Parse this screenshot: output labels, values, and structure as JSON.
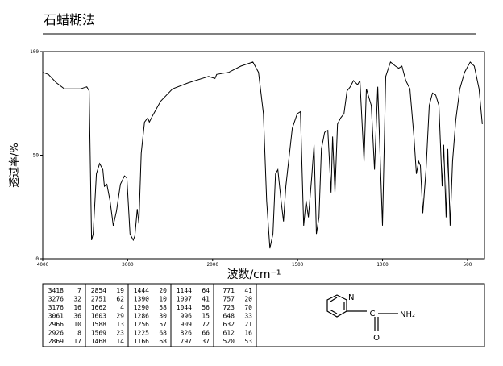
{
  "chart_data": {
    "type": "line",
    "title": "石蜡糊法",
    "x_label": "波数/cm⁻¹",
    "y_label": "透过率/%",
    "xlim": [
      4000,
      400
    ],
    "xticks": [
      4000,
      3000,
      2000,
      1500,
      1000,
      500
    ],
    "x_scale_break": 2000,
    "ylim": [
      0,
      100
    ],
    "yticks": [
      0,
      50,
      100
    ],
    "color": "#000000",
    "series": [
      {
        "x": [
          4000,
          3934,
          3840,
          3745,
          3557,
          3481,
          3453,
          3425,
          3406,
          3368,
          3330,
          3292,
          3274,
          3245,
          3208,
          3170,
          3132,
          3085,
          3038,
          3009,
          2972,
          2934,
          2915,
          2887,
          2868,
          2840,
          2802,
          2764,
          2745,
          2708,
          2613,
          2472,
          2283,
          2047,
          1986,
          1976,
          1905,
          1834,
          1763,
          1730,
          1701,
          1682,
          1663,
          1645,
          1630,
          1616,
          1597,
          1583,
          1569,
          1550,
          1531,
          1502,
          1483,
          1464,
          1450,
          1436,
          1417,
          1403,
          1389,
          1374,
          1360,
          1341,
          1322,
          1303,
          1294,
          1280,
          1265,
          1246,
          1227,
          1209,
          1190,
          1171,
          1147,
          1133,
          1109,
          1095,
          1066,
          1047,
          1028,
          1000,
          981,
          953,
          924,
          905,
          886,
          863,
          839,
          815,
          801,
          787,
          777,
          763,
          744,
          725,
          706,
          687,
          668,
          649,
          640,
          626,
          616,
          602,
          588,
          569,
          545,
          517,
          484,
          460,
          432,
          413
        ],
        "values": [
          90,
          89,
          85,
          82,
          82,
          83,
          81,
          9,
          12,
          41,
          46,
          43,
          35,
          36,
          28,
          16,
          23,
          36,
          40,
          39,
          12,
          9,
          11,
          24,
          17,
          51,
          66,
          68,
          66,
          69,
          76,
          82,
          85,
          88,
          87,
          89,
          90,
          93,
          95,
          90,
          70,
          28,
          5,
          12,
          41,
          43,
          28,
          18,
          35,
          49,
          63,
          70,
          71,
          16,
          28,
          20,
          39,
          55,
          12,
          20,
          53,
          61,
          62,
          32,
          59,
          32,
          65,
          68,
          70,
          81,
          83,
          86,
          84,
          86,
          47,
          82,
          74,
          43,
          83,
          16,
          88,
          95,
          93,
          92,
          93,
          86,
          82,
          59,
          41,
          47,
          45,
          22,
          43,
          74,
          80,
          79,
          74,
          35,
          55,
          20,
          53,
          16,
          47,
          67,
          82,
          90,
          95,
          93,
          82,
          65
        ]
      }
    ]
  },
  "peak_table": [
    [
      [
        3418,
        7
      ],
      [
        3276,
        32
      ],
      [
        3176,
        16
      ],
      [
        3061,
        36
      ],
      [
        2966,
        10
      ],
      [
        2926,
        8
      ],
      [
        2869,
        17
      ]
    ],
    [
      [
        2854,
        19
      ],
      [
        2751,
        62
      ],
      [
        1662,
        4
      ],
      [
        1603,
        29
      ],
      [
        1588,
        13
      ],
      [
        1569,
        23
      ],
      [
        1468,
        14
      ]
    ],
    [
      [
        1444,
        20
      ],
      [
        1390,
        10
      ],
      [
        1290,
        58
      ],
      [
        1286,
        30
      ],
      [
        1256,
        57
      ],
      [
        1225,
        68
      ],
      [
        1166,
        68
      ]
    ],
    [
      [
        1144,
        64
      ],
      [
        1097,
        41
      ],
      [
        1044,
        56
      ],
      [
        996,
        15
      ],
      [
        909,
        72
      ],
      [
        826,
        66
      ],
      [
        797,
        37
      ]
    ],
    [
      [
        771,
        41
      ],
      [
        757,
        20
      ],
      [
        723,
        70
      ],
      [
        648,
        33
      ],
      [
        632,
        21
      ],
      [
        612,
        16
      ],
      [
        520,
        53
      ]
    ]
  ],
  "structure": {
    "ring_atom": "N",
    "carbon": "C",
    "oxygen": "O",
    "amine": "NH₂"
  }
}
